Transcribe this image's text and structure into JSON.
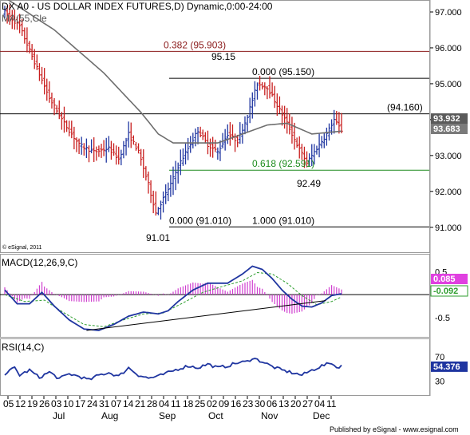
{
  "chart_data": [
    {
      "type": "ohlc",
      "title": "DX A0 - US DOLLAR INDEX FUTURES,D) Dynamic,0:00-24:00",
      "legend": "MA(55,Cle",
      "copyright": "© eSignal, 2011",
      "ylim": [
        90.75,
        97.2
      ],
      "y_ticks": [
        "97.000",
        "96.000",
        "95.000",
        "94.000",
        "93.000",
        "92.000",
        "91.000"
      ],
      "price_tags": [
        {
          "label": "93.932",
          "value": 93.932,
          "color": "#5a5a5a"
        },
        {
          "label": "93.683",
          "value": 93.683,
          "color": "#7a7a7a"
        }
      ],
      "levels": [
        {
          "value": 95.903,
          "label": "0.382 (95.903)",
          "color": "#8b1a1a"
        },
        {
          "value": 95.15,
          "label": "0.000 (95.150)",
          "color": "#000000"
        },
        {
          "value": 94.16,
          "label": "(94.160)",
          "color": "#000000"
        },
        {
          "value": 92.591,
          "label": "0.618 (92.591)",
          "color": "#1e8c1e"
        },
        {
          "value": 91.01,
          "label": "0.000 (91.010)",
          "color": "#000000"
        },
        {
          "value": 91.01,
          "label": "1.000 (91.010)",
          "color": "#000000"
        }
      ],
      "annotations": [
        "95.15",
        "92.49",
        "91.01"
      ],
      "close_anchors": [
        [
          0,
          97.0
        ],
        [
          6,
          96.6
        ],
        [
          12,
          95.6
        ],
        [
          18,
          94.6
        ],
        [
          24,
          93.9
        ],
        [
          30,
          93.3
        ],
        [
          36,
          93.1
        ],
        [
          42,
          93.2
        ],
        [
          46,
          92.9
        ],
        [
          50,
          93.6
        ],
        [
          54,
          93.1
        ],
        [
          58,
          92.2
        ],
        [
          61,
          91.4
        ],
        [
          64,
          91.8
        ],
        [
          67,
          92.2
        ],
        [
          70,
          92.7
        ],
        [
          74,
          93.2
        ],
        [
          78,
          93.7
        ],
        [
          82,
          93.3
        ],
        [
          86,
          93.1
        ],
        [
          90,
          93.6
        ],
        [
          94,
          93.4
        ],
        [
          98,
          94.1
        ],
        [
          102,
          95.0
        ],
        [
          106,
          94.9
        ],
        [
          110,
          94.4
        ],
        [
          114,
          93.9
        ],
        [
          118,
          93.3
        ],
        [
          122,
          92.8
        ],
        [
          126,
          93.2
        ],
        [
          130,
          93.6
        ],
        [
          133,
          94.0
        ],
        [
          136,
          93.7
        ]
      ],
      "ma_anchors": [
        [
          0,
          97.4
        ],
        [
          20,
          96.5
        ],
        [
          40,
          95.3
        ],
        [
          55,
          94.2
        ],
        [
          62,
          93.6
        ],
        [
          68,
          93.35
        ],
        [
          76,
          93.35
        ],
        [
          86,
          93.35
        ],
        [
          96,
          93.6
        ],
        [
          106,
          93.85
        ],
        [
          114,
          93.9
        ],
        [
          124,
          93.6
        ],
        [
          136,
          93.68
        ]
      ]
    },
    {
      "type": "line",
      "title": "MACD(12,26,9,C)",
      "ylim": [
        -0.85,
        0.75
      ],
      "y_ticks": [
        "0.5",
        "-0.5"
      ],
      "price_tags": [
        {
          "label": "0.085",
          "value": 0.085,
          "color": "#e040e0"
        },
        {
          "label": "-0.092",
          "value": -0.092,
          "color": "#ffffff"
        }
      ],
      "macd_anchors": [
        [
          0,
          0.1
        ],
        [
          5,
          -0.2
        ],
        [
          10,
          -0.2
        ],
        [
          15,
          0.05
        ],
        [
          20,
          -0.25
        ],
        [
          26,
          -0.55
        ],
        [
          32,
          -0.75
        ],
        [
          38,
          -0.78
        ],
        [
          44,
          -0.65
        ],
        [
          50,
          -0.47
        ],
        [
          56,
          -0.38
        ],
        [
          62,
          -0.42
        ],
        [
          66,
          -0.35
        ],
        [
          70,
          -0.15
        ],
        [
          76,
          0.1
        ],
        [
          82,
          0.25
        ],
        [
          90,
          0.25
        ],
        [
          96,
          0.45
        ],
        [
          100,
          0.62
        ],
        [
          104,
          0.55
        ],
        [
          108,
          0.35
        ],
        [
          112,
          0.1
        ],
        [
          116,
          -0.1
        ],
        [
          120,
          -0.25
        ],
        [
          124,
          -0.27
        ],
        [
          128,
          -0.18
        ],
        [
          132,
          -0.02
        ],
        [
          136,
          0.02
        ]
      ],
      "signal_anchors": [
        [
          0,
          0.0
        ],
        [
          8,
          -0.15
        ],
        [
          16,
          -0.12
        ],
        [
          24,
          -0.4
        ],
        [
          32,
          -0.65
        ],
        [
          40,
          -0.7
        ],
        [
          48,
          -0.55
        ],
        [
          56,
          -0.42
        ],
        [
          64,
          -0.4
        ],
        [
          72,
          -0.18
        ],
        [
          80,
          0.05
        ],
        [
          88,
          0.18
        ],
        [
          96,
          0.3
        ],
        [
          102,
          0.48
        ],
        [
          108,
          0.45
        ],
        [
          114,
          0.25
        ],
        [
          120,
          -0.02
        ],
        [
          126,
          -0.22
        ],
        [
          132,
          -0.15
        ],
        [
          136,
          -0.05
        ]
      ],
      "trendline": [
        [
          33,
          -0.78
        ],
        [
          120,
          -0.2
        ]
      ]
    },
    {
      "type": "line",
      "title": "RSI(14,C)",
      "ylim": [
        10,
        92
      ],
      "y_ticks": [
        "70",
        "30"
      ],
      "price_tags": [
        {
          "label": "54.376",
          "value": 54.376,
          "color": "#1f35a0"
        }
      ],
      "rsi_anchors": [
        [
          0,
          42
        ],
        [
          4,
          52
        ],
        [
          6,
          40
        ],
        [
          10,
          48
        ],
        [
          14,
          36
        ],
        [
          18,
          45
        ],
        [
          22,
          34
        ],
        [
          26,
          42
        ],
        [
          30,
          38
        ],
        [
          34,
          32
        ],
        [
          38,
          40
        ],
        [
          42,
          44
        ],
        [
          46,
          38
        ],
        [
          50,
          52
        ],
        [
          54,
          40
        ],
        [
          58,
          35
        ],
        [
          62,
          38
        ],
        [
          66,
          44
        ],
        [
          70,
          50
        ],
        [
          74,
          55
        ],
        [
          78,
          52
        ],
        [
          82,
          58
        ],
        [
          86,
          52
        ],
        [
          90,
          55
        ],
        [
          94,
          60
        ],
        [
          98,
          62
        ],
        [
          100,
          68
        ],
        [
          102,
          65
        ],
        [
          104,
          62
        ],
        [
          108,
          54
        ],
        [
          112,
          48
        ],
        [
          116,
          44
        ],
        [
          120,
          40
        ],
        [
          124,
          48
        ],
        [
          128,
          55
        ],
        [
          132,
          60
        ],
        [
          134,
          52
        ],
        [
          136,
          56
        ]
      ]
    }
  ],
  "x_axis": {
    "day_ticks": [
      "05",
      "12",
      "19",
      "26",
      "03",
      "10",
      "17",
      "24",
      "31",
      "07",
      "14",
      "21",
      "28",
      "04",
      "11",
      "18",
      "25",
      "02",
      "09",
      "16",
      "23",
      "30",
      "06",
      "13",
      "20",
      "27",
      "04",
      "11"
    ],
    "month_labels": [
      "Jul",
      "Aug",
      "Sep",
      "Oct",
      "Nov",
      "Dec"
    ]
  },
  "footer": "Published by eSignal - www.esignal.com"
}
